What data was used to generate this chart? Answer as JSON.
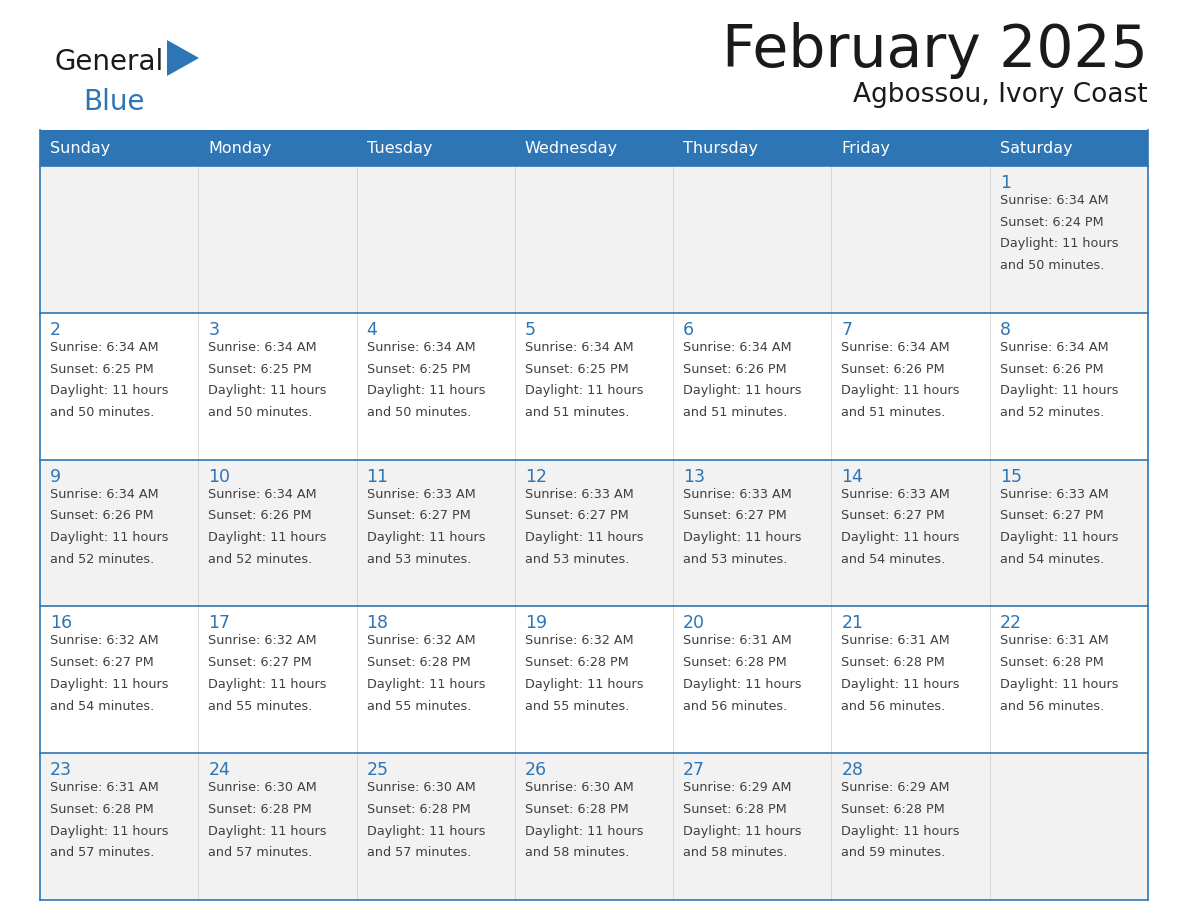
{
  "title": "February 2025",
  "subtitle": "Agbossou, Ivory Coast",
  "header_bg": "#2E75B6",
  "header_text_color": "#FFFFFF",
  "cell_border_color": "#2E75B6",
  "day_number_color": "#2E75B6",
  "cell_text_color": "#404040",
  "cell_bg_white": "#FFFFFF",
  "cell_bg_gray": "#F2F2F2",
  "background_color": "#FFFFFF",
  "days_of_week": [
    "Sunday",
    "Monday",
    "Tuesday",
    "Wednesday",
    "Thursday",
    "Friday",
    "Saturday"
  ],
  "calendar_data": [
    [
      null,
      null,
      null,
      null,
      null,
      null,
      {
        "day": 1,
        "sunrise": "6:34 AM",
        "sunset": "6:24 PM",
        "daylight": "11 hours and 50 minutes."
      }
    ],
    [
      {
        "day": 2,
        "sunrise": "6:34 AM",
        "sunset": "6:25 PM",
        "daylight": "11 hours and 50 minutes."
      },
      {
        "day": 3,
        "sunrise": "6:34 AM",
        "sunset": "6:25 PM",
        "daylight": "11 hours and 50 minutes."
      },
      {
        "day": 4,
        "sunrise": "6:34 AM",
        "sunset": "6:25 PM",
        "daylight": "11 hours and 50 minutes."
      },
      {
        "day": 5,
        "sunrise": "6:34 AM",
        "sunset": "6:25 PM",
        "daylight": "11 hours and 51 minutes."
      },
      {
        "day": 6,
        "sunrise": "6:34 AM",
        "sunset": "6:26 PM",
        "daylight": "11 hours and 51 minutes."
      },
      {
        "day": 7,
        "sunrise": "6:34 AM",
        "sunset": "6:26 PM",
        "daylight": "11 hours and 51 minutes."
      },
      {
        "day": 8,
        "sunrise": "6:34 AM",
        "sunset": "6:26 PM",
        "daylight": "11 hours and 52 minutes."
      }
    ],
    [
      {
        "day": 9,
        "sunrise": "6:34 AM",
        "sunset": "6:26 PM",
        "daylight": "11 hours and 52 minutes."
      },
      {
        "day": 10,
        "sunrise": "6:34 AM",
        "sunset": "6:26 PM",
        "daylight": "11 hours and 52 minutes."
      },
      {
        "day": 11,
        "sunrise": "6:33 AM",
        "sunset": "6:27 PM",
        "daylight": "11 hours and 53 minutes."
      },
      {
        "day": 12,
        "sunrise": "6:33 AM",
        "sunset": "6:27 PM",
        "daylight": "11 hours and 53 minutes."
      },
      {
        "day": 13,
        "sunrise": "6:33 AM",
        "sunset": "6:27 PM",
        "daylight": "11 hours and 53 minutes."
      },
      {
        "day": 14,
        "sunrise": "6:33 AM",
        "sunset": "6:27 PM",
        "daylight": "11 hours and 54 minutes."
      },
      {
        "day": 15,
        "sunrise": "6:33 AM",
        "sunset": "6:27 PM",
        "daylight": "11 hours and 54 minutes."
      }
    ],
    [
      {
        "day": 16,
        "sunrise": "6:32 AM",
        "sunset": "6:27 PM",
        "daylight": "11 hours and 54 minutes."
      },
      {
        "day": 17,
        "sunrise": "6:32 AM",
        "sunset": "6:27 PM",
        "daylight": "11 hours and 55 minutes."
      },
      {
        "day": 18,
        "sunrise": "6:32 AM",
        "sunset": "6:28 PM",
        "daylight": "11 hours and 55 minutes."
      },
      {
        "day": 19,
        "sunrise": "6:32 AM",
        "sunset": "6:28 PM",
        "daylight": "11 hours and 55 minutes."
      },
      {
        "day": 20,
        "sunrise": "6:31 AM",
        "sunset": "6:28 PM",
        "daylight": "11 hours and 56 minutes."
      },
      {
        "day": 21,
        "sunrise": "6:31 AM",
        "sunset": "6:28 PM",
        "daylight": "11 hours and 56 minutes."
      },
      {
        "day": 22,
        "sunrise": "6:31 AM",
        "sunset": "6:28 PM",
        "daylight": "11 hours and 56 minutes."
      }
    ],
    [
      {
        "day": 23,
        "sunrise": "6:31 AM",
        "sunset": "6:28 PM",
        "daylight": "11 hours and 57 minutes."
      },
      {
        "day": 24,
        "sunrise": "6:30 AM",
        "sunset": "6:28 PM",
        "daylight": "11 hours and 57 minutes."
      },
      {
        "day": 25,
        "sunrise": "6:30 AM",
        "sunset": "6:28 PM",
        "daylight": "11 hours and 57 minutes."
      },
      {
        "day": 26,
        "sunrise": "6:30 AM",
        "sunset": "6:28 PM",
        "daylight": "11 hours and 58 minutes."
      },
      {
        "day": 27,
        "sunrise": "6:29 AM",
        "sunset": "6:28 PM",
        "daylight": "11 hours and 58 minutes."
      },
      {
        "day": 28,
        "sunrise": "6:29 AM",
        "sunset": "6:28 PM",
        "daylight": "11 hours and 59 minutes."
      },
      null
    ]
  ],
  "logo_text_general": "General",
  "logo_text_blue": "Blue",
  "logo_color_general": "#1a1a1a",
  "logo_color_blue": "#2E75B6",
  "logo_triangle_color": "#2E75B6"
}
